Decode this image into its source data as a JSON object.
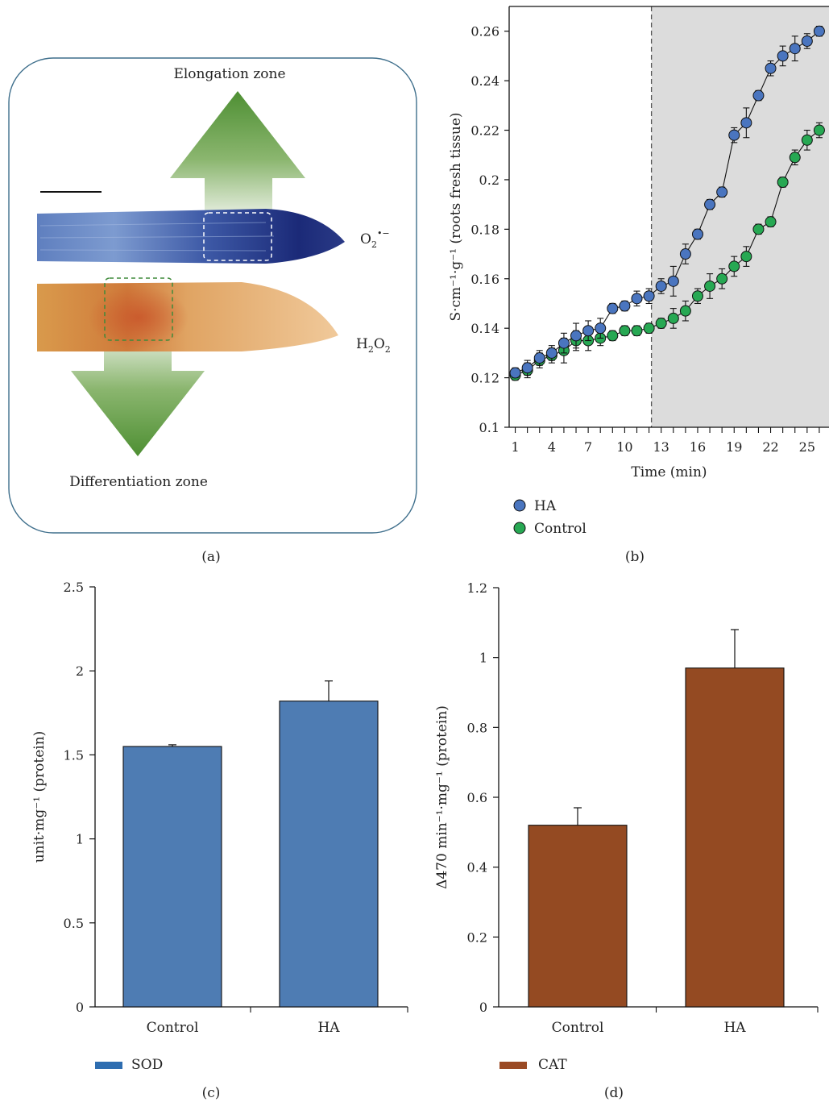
{
  "panel_a": {
    "label": "(a)",
    "elongation": "Elongation zone",
    "differentiation": "Differentiation zone",
    "o2_main": "O",
    "o2_sub": "2",
    "o2_sup": "•−",
    "h2o2_h": "H",
    "h2o2_sub1": "2",
    "h2o2_o": "O",
    "h2o2_sub2": "2",
    "colors": {
      "arrow": "#4e8f33",
      "o2_stain": "#1e2d7a",
      "h2o2_stain": "#d99a4c"
    }
  },
  "panel_b": {
    "label": "(b)"
  },
  "panel_c": {
    "label": "(c)"
  },
  "panel_d": {
    "label": "(d)"
  },
  "chart_data": [
    {
      "type": "line",
      "xlabel": "Time (min)",
      "ylabel": "S·cm⁻¹·g⁻¹ (roots fresh tissue)",
      "xticks": [
        1,
        4,
        7,
        10,
        13,
        16,
        19,
        22,
        25
      ],
      "yticks": [
        0.1,
        0.12,
        0.14,
        0.16,
        0.18,
        0.2,
        0.22,
        0.24,
        0.26
      ],
      "ytick_labels": [
        "0.1",
        "0.12",
        "0.14",
        "0.16",
        "0.18",
        "0.2",
        "0.22",
        "0.24",
        "0.26"
      ],
      "ylim": [
        0.1,
        0.27
      ],
      "xlim": [
        0.5,
        26.8
      ],
      "shaded_from_x": 12.2,
      "x": [
        1,
        2,
        3,
        4,
        5,
        6,
        7,
        8,
        9,
        10,
        11,
        12,
        13,
        14,
        15,
        16,
        17,
        18,
        19,
        20,
        21,
        22,
        23,
        24,
        25,
        26
      ],
      "series": [
        {
          "name": "HA",
          "color": "#4a75bf",
          "values": [
            0.122,
            0.124,
            0.128,
            0.13,
            0.134,
            0.137,
            0.139,
            0.14,
            0.148,
            0.149,
            0.152,
            0.153,
            0.157,
            0.159,
            0.17,
            0.178,
            0.19,
            0.195,
            0.218,
            0.223,
            0.234,
            0.245,
            0.25,
            0.253,
            0.256,
            0.26
          ],
          "errors": [
            0.002,
            0.003,
            0.003,
            0.003,
            0.004,
            0.005,
            0.004,
            0.004,
            0.002,
            0.002,
            0.003,
            0.003,
            0.003,
            0.006,
            0.004,
            0.002,
            0.002,
            0.002,
            0.003,
            0.006,
            0.002,
            0.003,
            0.004,
            0.005,
            0.003,
            0.002
          ]
        },
        {
          "name": "Control",
          "color": "#27a853",
          "values": [
            0.121,
            0.123,
            0.127,
            0.129,
            0.131,
            0.135,
            0.135,
            0.136,
            0.137,
            0.139,
            0.139,
            0.14,
            0.142,
            0.144,
            0.147,
            0.153,
            0.157,
            0.16,
            0.165,
            0.169,
            0.18,
            0.183,
            0.199,
            0.209,
            0.216,
            0.22
          ],
          "errors": [
            0.002,
            0.003,
            0.003,
            0.003,
            0.005,
            0.004,
            0.004,
            0.003,
            0.002,
            0.002,
            0.002,
            0.002,
            0.002,
            0.004,
            0.004,
            0.003,
            0.005,
            0.004,
            0.004,
            0.004,
            0.002,
            0.002,
            0.002,
            0.003,
            0.004,
            0.003
          ]
        }
      ]
    },
    {
      "type": "bar",
      "categories": [
        "Control",
        "HA"
      ],
      "values": [
        1.55,
        1.82
      ],
      "errors": [
        0.01,
        0.12
      ],
      "ylabel": "unit·mg⁻¹ (protein)",
      "yticks": [
        0,
        0.5,
        1,
        1.5,
        2,
        2.5
      ],
      "ytick_labels": [
        "0",
        "0.5",
        "1",
        "1.5",
        "2",
        "2.5"
      ],
      "ylim": [
        0,
        2.5
      ],
      "legend": "SOD",
      "color": "#4e7cb3"
    },
    {
      "type": "bar",
      "categories": [
        "Control",
        "HA"
      ],
      "values": [
        0.52,
        0.97
      ],
      "errors": [
        0.05,
        0.11
      ],
      "ylabel": "Δ470 min⁻¹·mg⁻¹ (protein)",
      "yticks": [
        0,
        0.2,
        0.4,
        0.6,
        0.8,
        1,
        1.2
      ],
      "ytick_labels": [
        "0",
        "0.2",
        "0.4",
        "0.6",
        "0.8",
        "1",
        "1.2"
      ],
      "ylim": [
        0,
        1.2
      ],
      "legend": "CAT",
      "color": "#944a22"
    }
  ]
}
